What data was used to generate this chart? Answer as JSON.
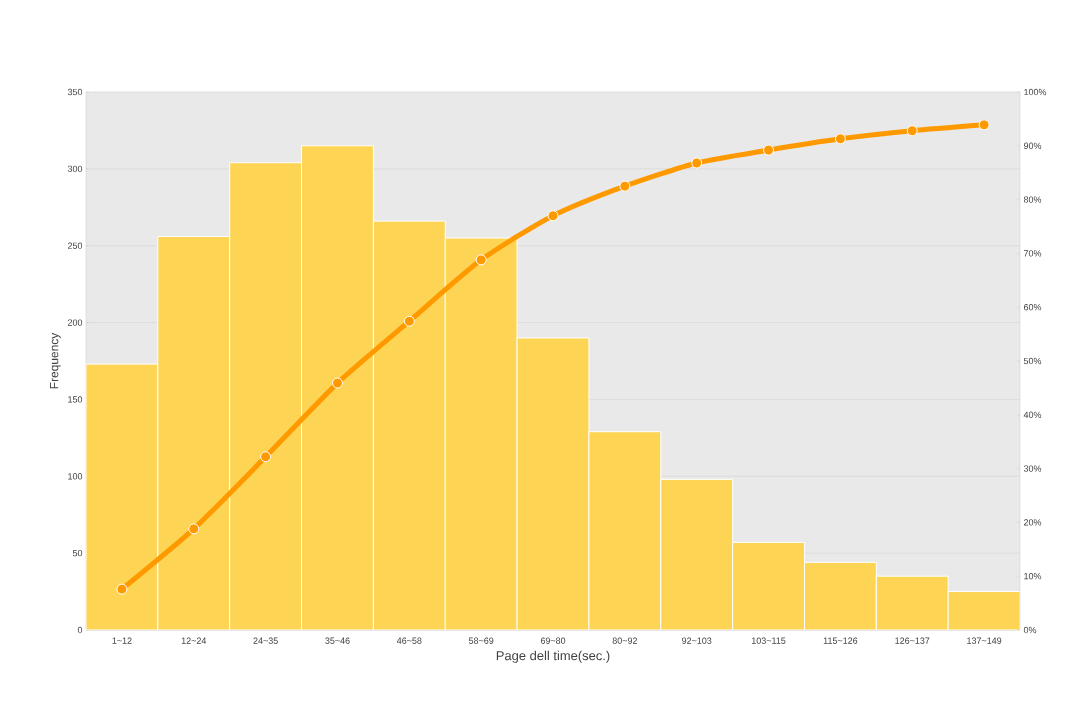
{
  "chart_data": {
    "type": "bar",
    "xlabel": "Page dell time(sec.)",
    "ylabel": "Frequency",
    "categories": [
      "1~12",
      "12~24",
      "24~35",
      "35~46",
      "46~58",
      "58~69",
      "69~80",
      "80~92",
      "92~103",
      "103~115",
      "115~126",
      "126~137",
      "137~149"
    ],
    "series": [
      {
        "color": "#fdd453",
        "values": [
          173,
          256,
          304,
          315,
          266,
          255,
          190,
          129,
          98,
          57,
          44,
          35,
          25
        ]
      },
      {
        "type": "line",
        "axis": "y2",
        "color": "#ff9900",
        "marker": "circle",
        "values": [
          7.6,
          18.8,
          32.2,
          45.9,
          57.4,
          68.8,
          77.0,
          82.5,
          86.8,
          89.2,
          91.3,
          92.8,
          93.9
        ]
      }
    ],
    "ylim": [
      0,
      350
    ],
    "yticks": [
      0,
      50,
      100,
      150,
      200,
      250,
      300,
      350
    ],
    "y2lim": [
      0,
      100
    ],
    "y2ticks": [
      {
        "value": 0,
        "label": "0%"
      },
      {
        "value": 10,
        "label": "10%"
      },
      {
        "value": 20,
        "label": "20%"
      },
      {
        "value": 30,
        "label": "30%"
      },
      {
        "value": 40,
        "label": "40%"
      },
      {
        "value": 50,
        "label": "50%"
      },
      {
        "value": 60,
        "label": "60%"
      },
      {
        "value": 70,
        "label": "70%"
      },
      {
        "value": 80,
        "label": "80%"
      },
      {
        "value": 90,
        "label": "90%"
      },
      {
        "value": 100,
        "label": "100%"
      }
    ],
    "grid": "y",
    "legend": false
  }
}
